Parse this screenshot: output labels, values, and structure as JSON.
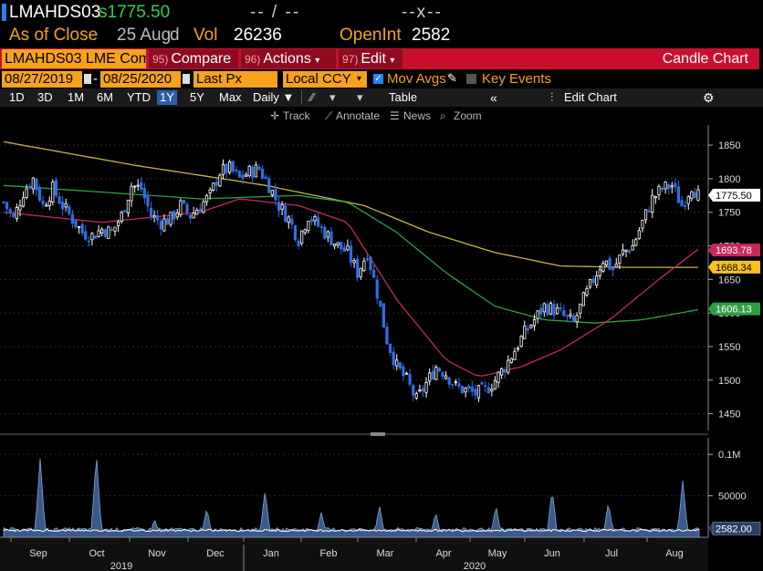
{
  "header": {
    "ticker": "LMAHDS03",
    "price_prefix": "s",
    "price": "1775.50",
    "change": "-- / --",
    "change_pct": "--x--",
    "as_of_label": "As of Close",
    "as_of_date": "25 Aug",
    "as_of_suffix": "d",
    "vol_label": "Vol",
    "vol_value": "26236",
    "openint_label": "OpenInt",
    "openint_value": "2582"
  },
  "menubar": {
    "security": "LMAHDS03 LME Comdty",
    "compare_num": "95)",
    "compare": "Compare",
    "actions_num": "96)",
    "actions": "Actions",
    "edit_num": "97)",
    "edit": "Edit",
    "title": "Candle Chart"
  },
  "options": {
    "start_date": "08/27/2019",
    "end_date": "08/25/2020",
    "field": "Last Px",
    "currency": "Local CCY",
    "mov_avgs": "Mov Avgs",
    "key_events": "Key Events"
  },
  "ranges": [
    "1D",
    "3D",
    "1M",
    "6M",
    "YTD",
    "1Y",
    "5Y",
    "Max"
  ],
  "active_range": "1Y",
  "frequency": "Daily",
  "table_label": "Table",
  "edit_chart_label": "Edit Chart",
  "tools": {
    "track": "Track",
    "annotate": "Annotate",
    "news": "News",
    "zoom": "Zoom"
  },
  "colors": {
    "up": "#ffffff",
    "down": "#2f6fe4",
    "ma_short": "#c8285c",
    "ma_mid": "#2ea043",
    "ma_long": "#c7b34a",
    "volume_fill": "#3a5a8a",
    "volume_line": "#ffffff"
  },
  "chart_data": {
    "type": "candlestick",
    "price_axis": {
      "ticks": [
        "1850",
        "1800",
        "1750",
        "1700",
        "1650",
        "1600",
        "1550",
        "1500",
        "1450"
      ],
      "ylim": [
        1425,
        1880
      ]
    },
    "last_price_label": "1775.50",
    "ma_labels": {
      "ma_short": "1693.78",
      "ma_long": "1668.34",
      "ma_mid": "1606.13"
    },
    "volume_axis": {
      "ticks": [
        "0.1M",
        "50000"
      ],
      "last_label": "2582.00"
    },
    "x_months": [
      "Sep",
      "Oct",
      "Nov",
      "Dec",
      "Jan",
      "Feb",
      "Mar",
      "Apr",
      "May",
      "Jun",
      "Jul",
      "Aug"
    ],
    "x_years": [
      "2019",
      "2020"
    ],
    "close_path": [
      [
        0,
        1765
      ],
      [
        3,
        1740
      ],
      [
        6,
        1780
      ],
      [
        9,
        1800
      ],
      [
        12,
        1760
      ],
      [
        15,
        1785
      ],
      [
        18,
        1760
      ],
      [
        21,
        1740
      ],
      [
        24,
        1720
      ],
      [
        27,
        1715
      ],
      [
        30,
        1725
      ],
      [
        33,
        1720
      ],
      [
        36,
        1745
      ],
      [
        39,
        1790
      ],
      [
        42,
        1785
      ],
      [
        45,
        1745
      ],
      [
        48,
        1735
      ],
      [
        51,
        1740
      ],
      [
        54,
        1760
      ],
      [
        57,
        1745
      ],
      [
        60,
        1760
      ],
      [
        63,
        1775
      ],
      [
        66,
        1810
      ],
      [
        69,
        1815
      ],
      [
        72,
        1800
      ],
      [
        75,
        1810
      ],
      [
        78,
        1815
      ],
      [
        81,
        1790
      ],
      [
        84,
        1760
      ],
      [
        87,
        1740
      ],
      [
        90,
        1710
      ],
      [
        93,
        1745
      ],
      [
        96,
        1730
      ],
      [
        99,
        1715
      ],
      [
        102,
        1700
      ],
      [
        105,
        1690
      ],
      [
        108,
        1660
      ],
      [
        111,
        1690
      ],
      [
        114,
        1630
      ],
      [
        117,
        1560
      ],
      [
        120,
        1520
      ],
      [
        123,
        1500
      ],
      [
        126,
        1470
      ],
      [
        129,
        1495
      ],
      [
        132,
        1520
      ],
      [
        135,
        1510
      ],
      [
        138,
        1490
      ],
      [
        141,
        1485
      ],
      [
        144,
        1480
      ],
      [
        147,
        1485
      ],
      [
        150,
        1500
      ],
      [
        153,
        1520
      ],
      [
        156,
        1545
      ],
      [
        159,
        1570
      ],
      [
        162,
        1590
      ],
      [
        165,
        1610
      ],
      [
        168,
        1605
      ],
      [
        171,
        1595
      ],
      [
        174,
        1585
      ],
      [
        177,
        1620
      ],
      [
        180,
        1650
      ],
      [
        183,
        1680
      ],
      [
        186,
        1665
      ],
      [
        189,
        1690
      ],
      [
        192,
        1700
      ],
      [
        195,
        1735
      ],
      [
        198,
        1770
      ],
      [
        201,
        1785
      ],
      [
        204,
        1790
      ],
      [
        207,
        1760
      ],
      [
        210,
        1790
      ],
      [
        212,
        1775
      ]
    ],
    "ma_short_path": [
      [
        0,
        1750
      ],
      [
        30,
        1735
      ],
      [
        60,
        1750
      ],
      [
        72,
        1770
      ],
      [
        90,
        1760
      ],
      [
        105,
        1735
      ],
      [
        120,
        1620
      ],
      [
        135,
        1530
      ],
      [
        145,
        1505
      ],
      [
        158,
        1520
      ],
      [
        170,
        1545
      ],
      [
        185,
        1590
      ],
      [
        200,
        1650
      ],
      [
        212,
        1695
      ]
    ],
    "ma_mid_path": [
      [
        0,
        1790
      ],
      [
        30,
        1780
      ],
      [
        60,
        1770
      ],
      [
        90,
        1775
      ],
      [
        105,
        1765
      ],
      [
        120,
        1720
      ],
      [
        135,
        1660
      ],
      [
        150,
        1610
      ],
      [
        165,
        1590
      ],
      [
        180,
        1585
      ],
      [
        195,
        1590
      ],
      [
        212,
        1605
      ]
    ],
    "ma_long_path": [
      [
        0,
        1855
      ],
      [
        40,
        1820
      ],
      [
        80,
        1790
      ],
      [
        110,
        1760
      ],
      [
        130,
        1720
      ],
      [
        150,
        1690
      ],
      [
        170,
        1670
      ],
      [
        190,
        1668
      ],
      [
        212,
        1668
      ]
    ]
  }
}
